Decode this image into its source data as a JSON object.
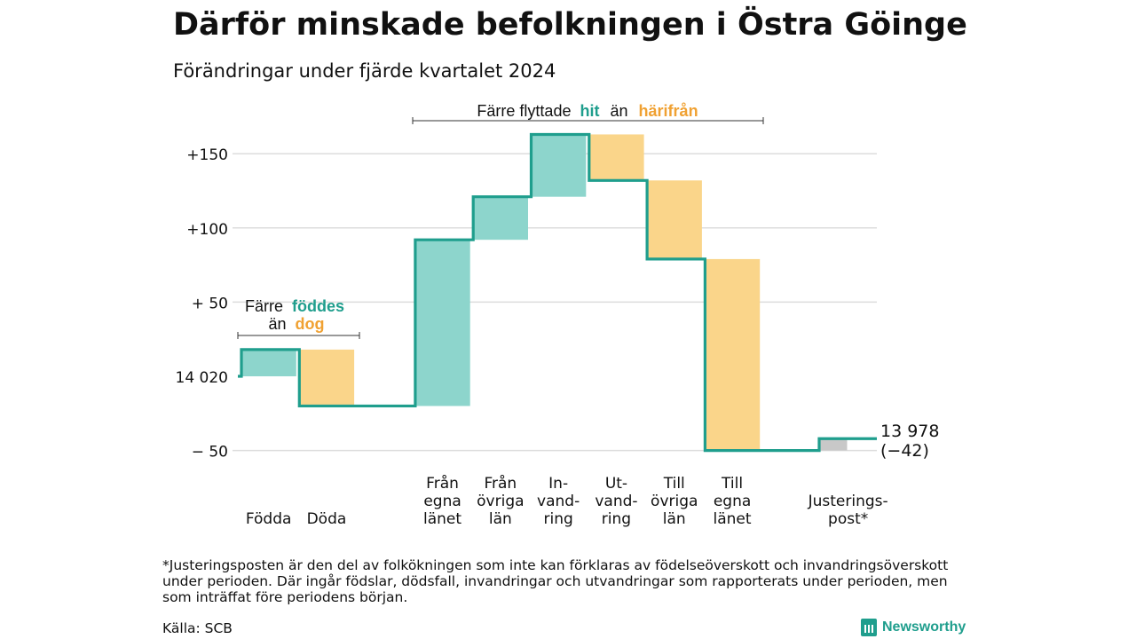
{
  "title": "Därför minskade befolkningen i Östra Göinge",
  "subtitle": "Förändringar under fjärde kvartalet 2024",
  "annotations": {
    "births_deaths": {
      "line1": "Färre",
      "word_teal": "föddes",
      "line2": "än",
      "word_orange": "dog"
    },
    "migration": {
      "prefix": "Färre flyttade",
      "word_teal": "hit",
      "middle": "än",
      "word_orange": "härifrån"
    }
  },
  "colors": {
    "increase": "#8dd5cc",
    "decrease": "#fad58a",
    "adjustment": "#c8c8c8",
    "line": "#1f9e8d",
    "teal_text": "#1f9e8d",
    "orange_text": "#f0a132"
  },
  "footnote": "*Justeringsposten är den del av folkökningen som inte kan förklaras av födelseöverskott och invandringsöverskott under perioden. Där ingår födslar, dödsfall, invandringar och utvandringar som rapporterats under perioden, men som inträffat före periodens början.",
  "source": "Källa: SCB",
  "brand": "Newsworthy",
  "chart_data": {
    "type": "waterfall",
    "start_value": 14020,
    "start_label": "14 020",
    "end_label_value": "13 978",
    "end_label_change": "(−42)",
    "y_ticks": [
      {
        "value": 150,
        "label": "+150"
      },
      {
        "value": 100,
        "label": "+100"
      },
      {
        "value": 50,
        "label": "+ 50"
      },
      {
        "value": 0,
        "label": "14 020"
      },
      {
        "value": -50,
        "label": "−  50"
      }
    ],
    "ylim": [
      -50,
      160
    ],
    "steps": [
      {
        "label": [
          "Födda"
        ],
        "change": 18,
        "kind": "increase"
      },
      {
        "label": [
          "Döda"
        ],
        "change": -38,
        "kind": "decrease"
      },
      {
        "label": [
          "",
          ""
        ],
        "change": 0,
        "kind": "none"
      },
      {
        "label": [
          "Från",
          "egna",
          "länet"
        ],
        "change": 112,
        "kind": "increase"
      },
      {
        "label": [
          "Från",
          "övriga",
          "län"
        ],
        "change": 29,
        "kind": "increase"
      },
      {
        "label": [
          "In-",
          "vand-",
          "ring"
        ],
        "change": 42,
        "kind": "increase"
      },
      {
        "label": [
          "Ut-",
          "vand-",
          "ring"
        ],
        "change": -31,
        "kind": "decrease"
      },
      {
        "label": [
          "Till",
          "övriga",
          "län"
        ],
        "change": -53,
        "kind": "decrease"
      },
      {
        "label": [
          "Till",
          "egna",
          "länet"
        ],
        "change": -129,
        "kind": "decrease"
      },
      {
        "label": [
          "",
          ""
        ],
        "change": 0,
        "kind": "none"
      },
      {
        "label": [
          "Justerings-",
          "post*"
        ],
        "change": 8,
        "kind": "adjustment"
      }
    ]
  }
}
